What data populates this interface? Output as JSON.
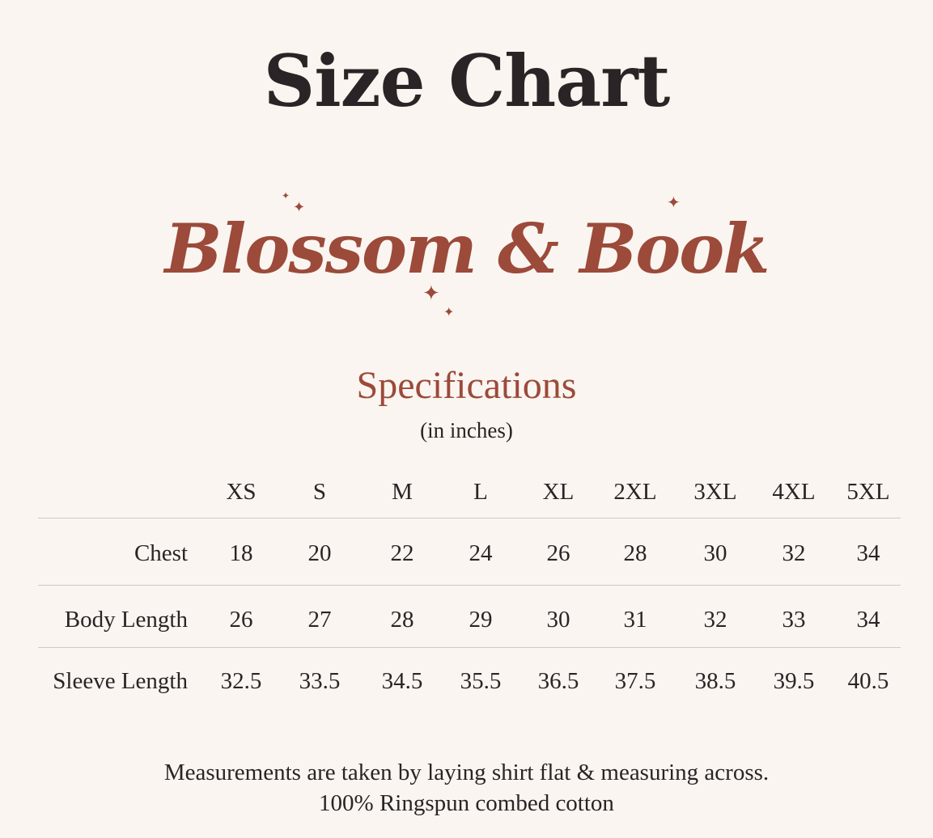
{
  "title": "Size Chart",
  "logo": {
    "text": "Blossom & Book",
    "color": "#9c4a3a"
  },
  "section": {
    "title": "Specifications",
    "unit": "(in inches)"
  },
  "table": {
    "columns": [
      "XS",
      "S",
      "M",
      "L",
      "XL",
      "2XL",
      "3XL",
      "4XL",
      "5XL"
    ],
    "rows": [
      {
        "label": "Chest",
        "values": [
          "18",
          "20",
          "22",
          "24",
          "26",
          "28",
          "30",
          "32",
          "34"
        ]
      },
      {
        "label": "Body Length",
        "values": [
          "26",
          "27",
          "28",
          "29",
          "30",
          "31",
          "32",
          "33",
          "34"
        ]
      },
      {
        "label": "Sleeve Length",
        "values": [
          "32.5",
          "33.5",
          "34.5",
          "35.5",
          "36.5",
          "37.5",
          "38.5",
          "39.5",
          "40.5"
        ]
      }
    ]
  },
  "footer": {
    "line1": "Measurements are taken by laying shirt flat & measuring across.",
    "line2": "100% Ringspun combed cotton"
  },
  "colors": {
    "background": "#faf5f0",
    "accent": "#9c4a3a",
    "text": "#2a2426"
  }
}
